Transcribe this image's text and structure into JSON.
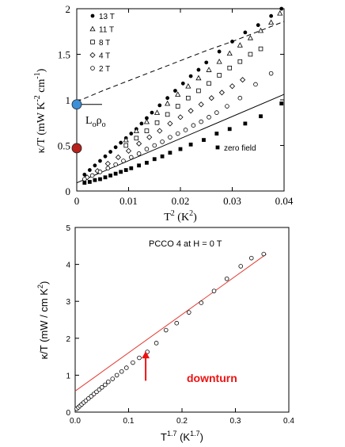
{
  "chart_data": [
    {
      "type": "scatter",
      "xlabel_base": "T",
      "xlabel_sup": "2",
      "xlabel_tail": " (K",
      "xlabel_tail_sup": "2",
      "xlabel_close": ")",
      "ylabel": "κ/T (mW K",
      "ylabel_sup1": "-2",
      "ylabel_mid": " cm",
      "ylabel_sup2": "-1",
      "ylabel_close": ")",
      "xlim": [
        0,
        0.04
      ],
      "ylim": [
        0,
        2
      ],
      "x_ticks": [
        0,
        0.01,
        0.02,
        0.03,
        0.04
      ],
      "x_tick_labels": [
        "0",
        "0.01",
        "0.02",
        "0.03",
        "0.04"
      ],
      "y_ticks": [
        0,
        0.5,
        1,
        1.5,
        2
      ],
      "y_tick_labels": [
        "0",
        "0.5",
        "1",
        "1.5",
        "2"
      ],
      "legend_position": "top-left",
      "series": [
        {
          "name": "13 T",
          "marker": "filled-circle",
          "x": [
            0.0015,
            0.0025,
            0.0035,
            0.0045,
            0.0055,
            0.0065,
            0.0075,
            0.0085,
            0.0095,
            0.0105,
            0.0115,
            0.0125,
            0.0135,
            0.0145,
            0.016,
            0.0175,
            0.019,
            0.0205,
            0.022,
            0.0235,
            0.025,
            0.0275,
            0.03,
            0.0325,
            0.035,
            0.0375,
            0.0395
          ],
          "y": [
            0.18,
            0.23,
            0.28,
            0.33,
            0.38,
            0.43,
            0.48,
            0.53,
            0.58,
            0.63,
            0.68,
            0.74,
            0.8,
            0.86,
            0.94,
            1.02,
            1.1,
            1.18,
            1.26,
            1.33,
            1.41,
            1.53,
            1.64,
            1.74,
            1.82,
            1.92,
            2.0
          ]
        },
        {
          "name": "11 T",
          "marker": "open-triangle",
          "x": [
            0.0095,
            0.0115,
            0.0135,
            0.0155,
            0.0175,
            0.0195,
            0.0215,
            0.0235,
            0.0255,
            0.0275,
            0.0295,
            0.0315,
            0.0335,
            0.0355,
            0.0375,
            0.0392
          ],
          "y": [
            0.56,
            0.66,
            0.76,
            0.86,
            0.96,
            1.06,
            1.15,
            1.24,
            1.33,
            1.42,
            1.51,
            1.6,
            1.68,
            1.76,
            1.85,
            1.95
          ]
        },
        {
          "name": "8 T",
          "marker": "open-square",
          "x": [
            0.0095,
            0.0115,
            0.0135,
            0.0155,
            0.0175,
            0.0195,
            0.0215,
            0.0235,
            0.0255,
            0.0275,
            0.0295,
            0.0315,
            0.0335,
            0.0355
          ],
          "y": [
            0.5,
            0.58,
            0.66,
            0.75,
            0.84,
            0.93,
            1.02,
            1.1,
            1.18,
            1.27,
            1.35,
            1.42,
            1.5,
            1.56
          ]
        },
        {
          "name": "4 T",
          "marker": "open-diamond",
          "x": [
            0.002,
            0.004,
            0.006,
            0.008,
            0.01,
            0.012,
            0.014,
            0.016,
            0.018,
            0.02,
            0.022,
            0.024,
            0.026,
            0.028,
            0.03,
            0.032
          ],
          "y": [
            0.15,
            0.22,
            0.3,
            0.37,
            0.44,
            0.52,
            0.59,
            0.66,
            0.74,
            0.81,
            0.88,
            0.95,
            1.02,
            1.08,
            1.15,
            1.22
          ]
        },
        {
          "name": "2 T",
          "marker": "open-circle",
          "x": [
            0.0015,
            0.003,
            0.0045,
            0.006,
            0.0075,
            0.009,
            0.0105,
            0.012,
            0.0135,
            0.015,
            0.0165,
            0.018,
            0.0195,
            0.021,
            0.0225,
            0.024,
            0.0255,
            0.027,
            0.029,
            0.0315,
            0.0345,
            0.0375
          ],
          "y": [
            0.13,
            0.17,
            0.21,
            0.25,
            0.29,
            0.33,
            0.37,
            0.41,
            0.46,
            0.5,
            0.54,
            0.59,
            0.63,
            0.67,
            0.72,
            0.76,
            0.81,
            0.86,
            0.93,
            1.02,
            1.17,
            1.29
          ]
        },
        {
          "name": "zero field",
          "marker": "filled-square",
          "x": [
            0.0015,
            0.0025,
            0.0035,
            0.0045,
            0.0055,
            0.0065,
            0.0075,
            0.0085,
            0.0095,
            0.0105,
            0.012,
            0.0135,
            0.015,
            0.0165,
            0.018,
            0.02,
            0.022,
            0.0245,
            0.027,
            0.0295,
            0.0325,
            0.0355,
            0.0395
          ],
          "y": [
            0.09,
            0.1,
            0.12,
            0.13,
            0.15,
            0.17,
            0.19,
            0.21,
            0.23,
            0.25,
            0.28,
            0.31,
            0.35,
            0.38,
            0.42,
            0.46,
            0.51,
            0.56,
            0.63,
            0.68,
            0.74,
            0.82,
            0.96
          ]
        }
      ],
      "fit_solid": {
        "x": [
          0,
          0.04
        ],
        "y": [
          0.09,
          1.06
        ]
      },
      "fit_dashed": {
        "x": [
          0,
          0.005,
          0.01,
          0.015,
          0.02,
          0.025,
          0.03,
          0.035,
          0.04
        ],
        "y": [
          0.98,
          1.1,
          1.21,
          1.32,
          1.43,
          1.54,
          1.64,
          1.75,
          1.86
        ]
      },
      "marker_blue": {
        "y": 0.95,
        "color": "#3d8fd8"
      },
      "marker_red": {
        "y": 0.47,
        "color": "#b8201c"
      },
      "annotation_L0": "L",
      "annotation_L0_sub": "o",
      "annotation_rho": "ρ",
      "annotation_rho_sub": "o"
    },
    {
      "type": "scatter",
      "title_inset": "PCCO 4 at H = 0 T",
      "xlabel_base": "T",
      "xlabel_sup": "1.7",
      "xlabel_tail": " (K",
      "xlabel_tail_sup": "1.7",
      "xlabel_close": ")",
      "ylabel": "κ/T (mW / cm K",
      "ylabel_sup": "2",
      "ylabel_close": ")",
      "xlim": [
        0,
        0.4
      ],
      "ylim": [
        0,
        5
      ],
      "x_ticks": [
        0,
        0.1,
        0.2,
        0.3,
        0.4
      ],
      "x_tick_labels": [
        "0.0",
        "0.1",
        "0.2",
        "0.3",
        "0.4"
      ],
      "y_ticks": [
        0,
        1,
        2,
        3,
        4,
        5
      ],
      "y_tick_labels": [
        "0",
        "1",
        "2",
        "3",
        "4",
        "5"
      ],
      "series": [
        {
          "marker": "open-circle",
          "x": [
            0.003,
            0.006,
            0.009,
            0.012,
            0.016,
            0.02,
            0.025,
            0.03,
            0.035,
            0.04,
            0.045,
            0.05,
            0.056,
            0.062,
            0.07,
            0.078,
            0.087,
            0.096,
            0.108,
            0.12,
            0.135,
            0.152,
            0.17,
            0.19,
            0.213,
            0.236,
            0.26,
            0.284,
            0.31,
            0.33,
            0.353
          ],
          "y": [
            0.09,
            0.13,
            0.17,
            0.21,
            0.26,
            0.31,
            0.37,
            0.43,
            0.49,
            0.55,
            0.61,
            0.67,
            0.74,
            0.82,
            0.9,
            1.0,
            1.1,
            1.2,
            1.34,
            1.47,
            1.63,
            1.87,
            2.22,
            2.41,
            2.7,
            2.96,
            3.28,
            3.61,
            3.95,
            4.17,
            4.28
          ]
        }
      ],
      "fit_red": {
        "x": [
          0,
          0.358
        ],
        "y": [
          0.57,
          4.28
        ],
        "color": "#e33a32"
      },
      "arrow": {
        "x": 0.132,
        "y_from": 0.85,
        "y_to": 1.65,
        "color": "#ee1111"
      },
      "annotation_downturn": "downturn",
      "annotation_color": "#ee1111"
    }
  ]
}
